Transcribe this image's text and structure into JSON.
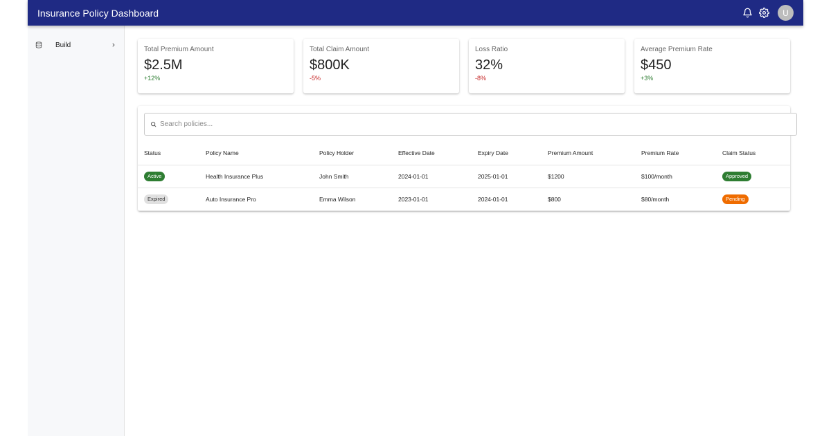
{
  "app": {
    "title": "Insurance Policy Dashboard",
    "avatar_initial": "U",
    "primary_color": "#1f2a84"
  },
  "sidebar": {
    "items": [
      {
        "label": "Build",
        "icon": "database-icon"
      }
    ]
  },
  "metrics": [
    {
      "label": "Total Premium Amount",
      "value": "$2.5M",
      "change": "+12%",
      "trend": "positive"
    },
    {
      "label": "Total Claim Amount",
      "value": "$800K",
      "change": "-5%",
      "trend": "negative"
    },
    {
      "label": "Loss Ratio",
      "value": "32%",
      "change": "-8%",
      "trend": "negative"
    },
    {
      "label": "Average Premium Rate",
      "value": "$450",
      "change": "+3%",
      "trend": "positive"
    }
  ],
  "search": {
    "placeholder": "Search policies..."
  },
  "table": {
    "columns": [
      "Status",
      "Policy Name",
      "Policy Holder",
      "Effective Date",
      "Expiry Date",
      "Premium Amount",
      "Premium Rate",
      "Claim Status"
    ],
    "rows": [
      {
        "status": "Active",
        "policy_name": "Health Insurance Plus",
        "policy_holder": "John Smith",
        "effective_date": "2024-01-01",
        "expiry_date": "2025-01-01",
        "premium_amount": "$1200",
        "premium_rate": "$100/month",
        "claim_status": "Approved"
      },
      {
        "status": "Expired",
        "policy_name": "Auto Insurance Pro",
        "policy_holder": "Emma Wilson",
        "effective_date": "2023-01-01",
        "expiry_date": "2024-01-01",
        "premium_amount": "$800",
        "premium_rate": "$80/month",
        "claim_status": "Pending"
      }
    ]
  }
}
